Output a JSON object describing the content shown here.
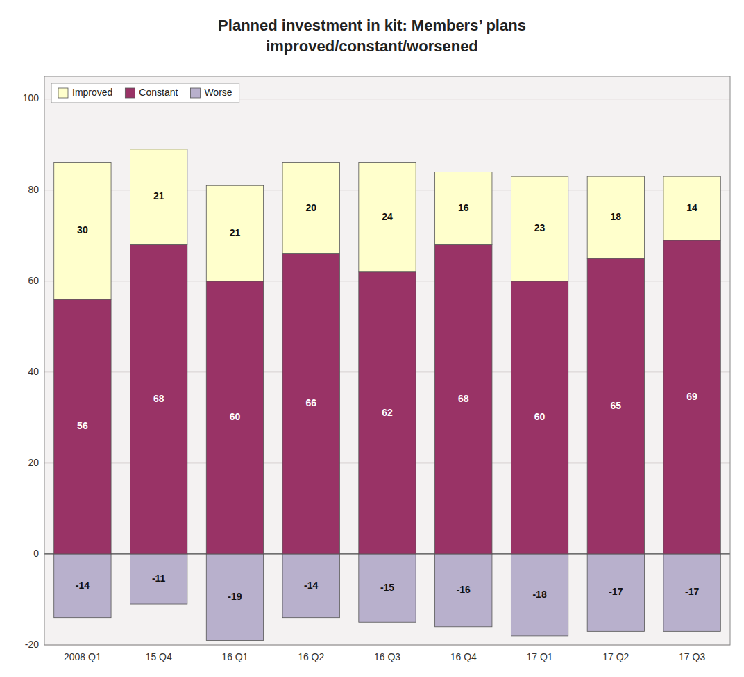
{
  "chart_data": {
    "type": "bar",
    "title": "Planned investment in kit: Members’ plans improved/constant/worsened",
    "categories": [
      "2008 Q1",
      "15 Q4",
      "16 Q1",
      "16 Q2",
      "16 Q3",
      "16 Q4",
      "17 Q1",
      "17 Q2",
      "17 Q3"
    ],
    "series": [
      {
        "name": "Improved",
        "color": "#ffffcc",
        "values": [
          30,
          21,
          21,
          20,
          24,
          16,
          23,
          18,
          14
        ]
      },
      {
        "name": "Constant",
        "color": "#993366",
        "values": [
          56,
          68,
          60,
          66,
          62,
          68,
          60,
          65,
          69
        ]
      },
      {
        "name": "Worse",
        "color": "#b8b0cc",
        "values": [
          -14,
          -11,
          -19,
          -14,
          -15,
          -16,
          -18,
          -17,
          -17
        ]
      }
    ],
    "stacked": true,
    "data_labels": true,
    "ylim": [
      -20,
      105
    ],
    "yticks": [
      -20,
      0,
      20,
      40,
      60,
      80,
      100
    ],
    "grid": true,
    "legend": "upper left"
  }
}
